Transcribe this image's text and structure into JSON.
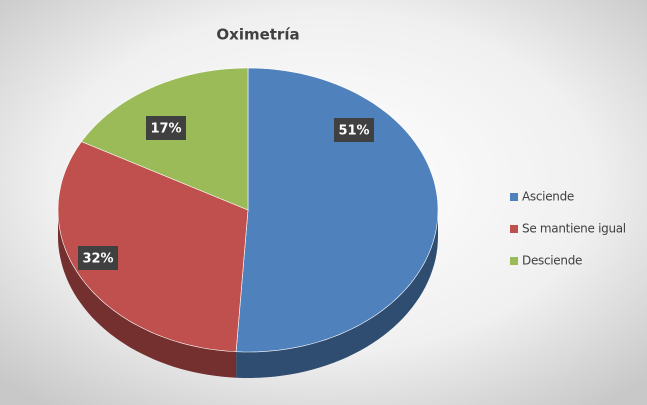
{
  "chart_data": {
    "type": "pie",
    "title": "Oximetría",
    "categories": [
      "Asciende",
      "Se mantiene igual",
      "Desciende"
    ],
    "values": [
      51,
      32,
      17
    ],
    "value_labels": [
      "51%",
      "32%",
      "17%"
    ],
    "colors": [
      "#4f81bd",
      "#c0504d",
      "#9bbb59"
    ],
    "legend": "right"
  }
}
